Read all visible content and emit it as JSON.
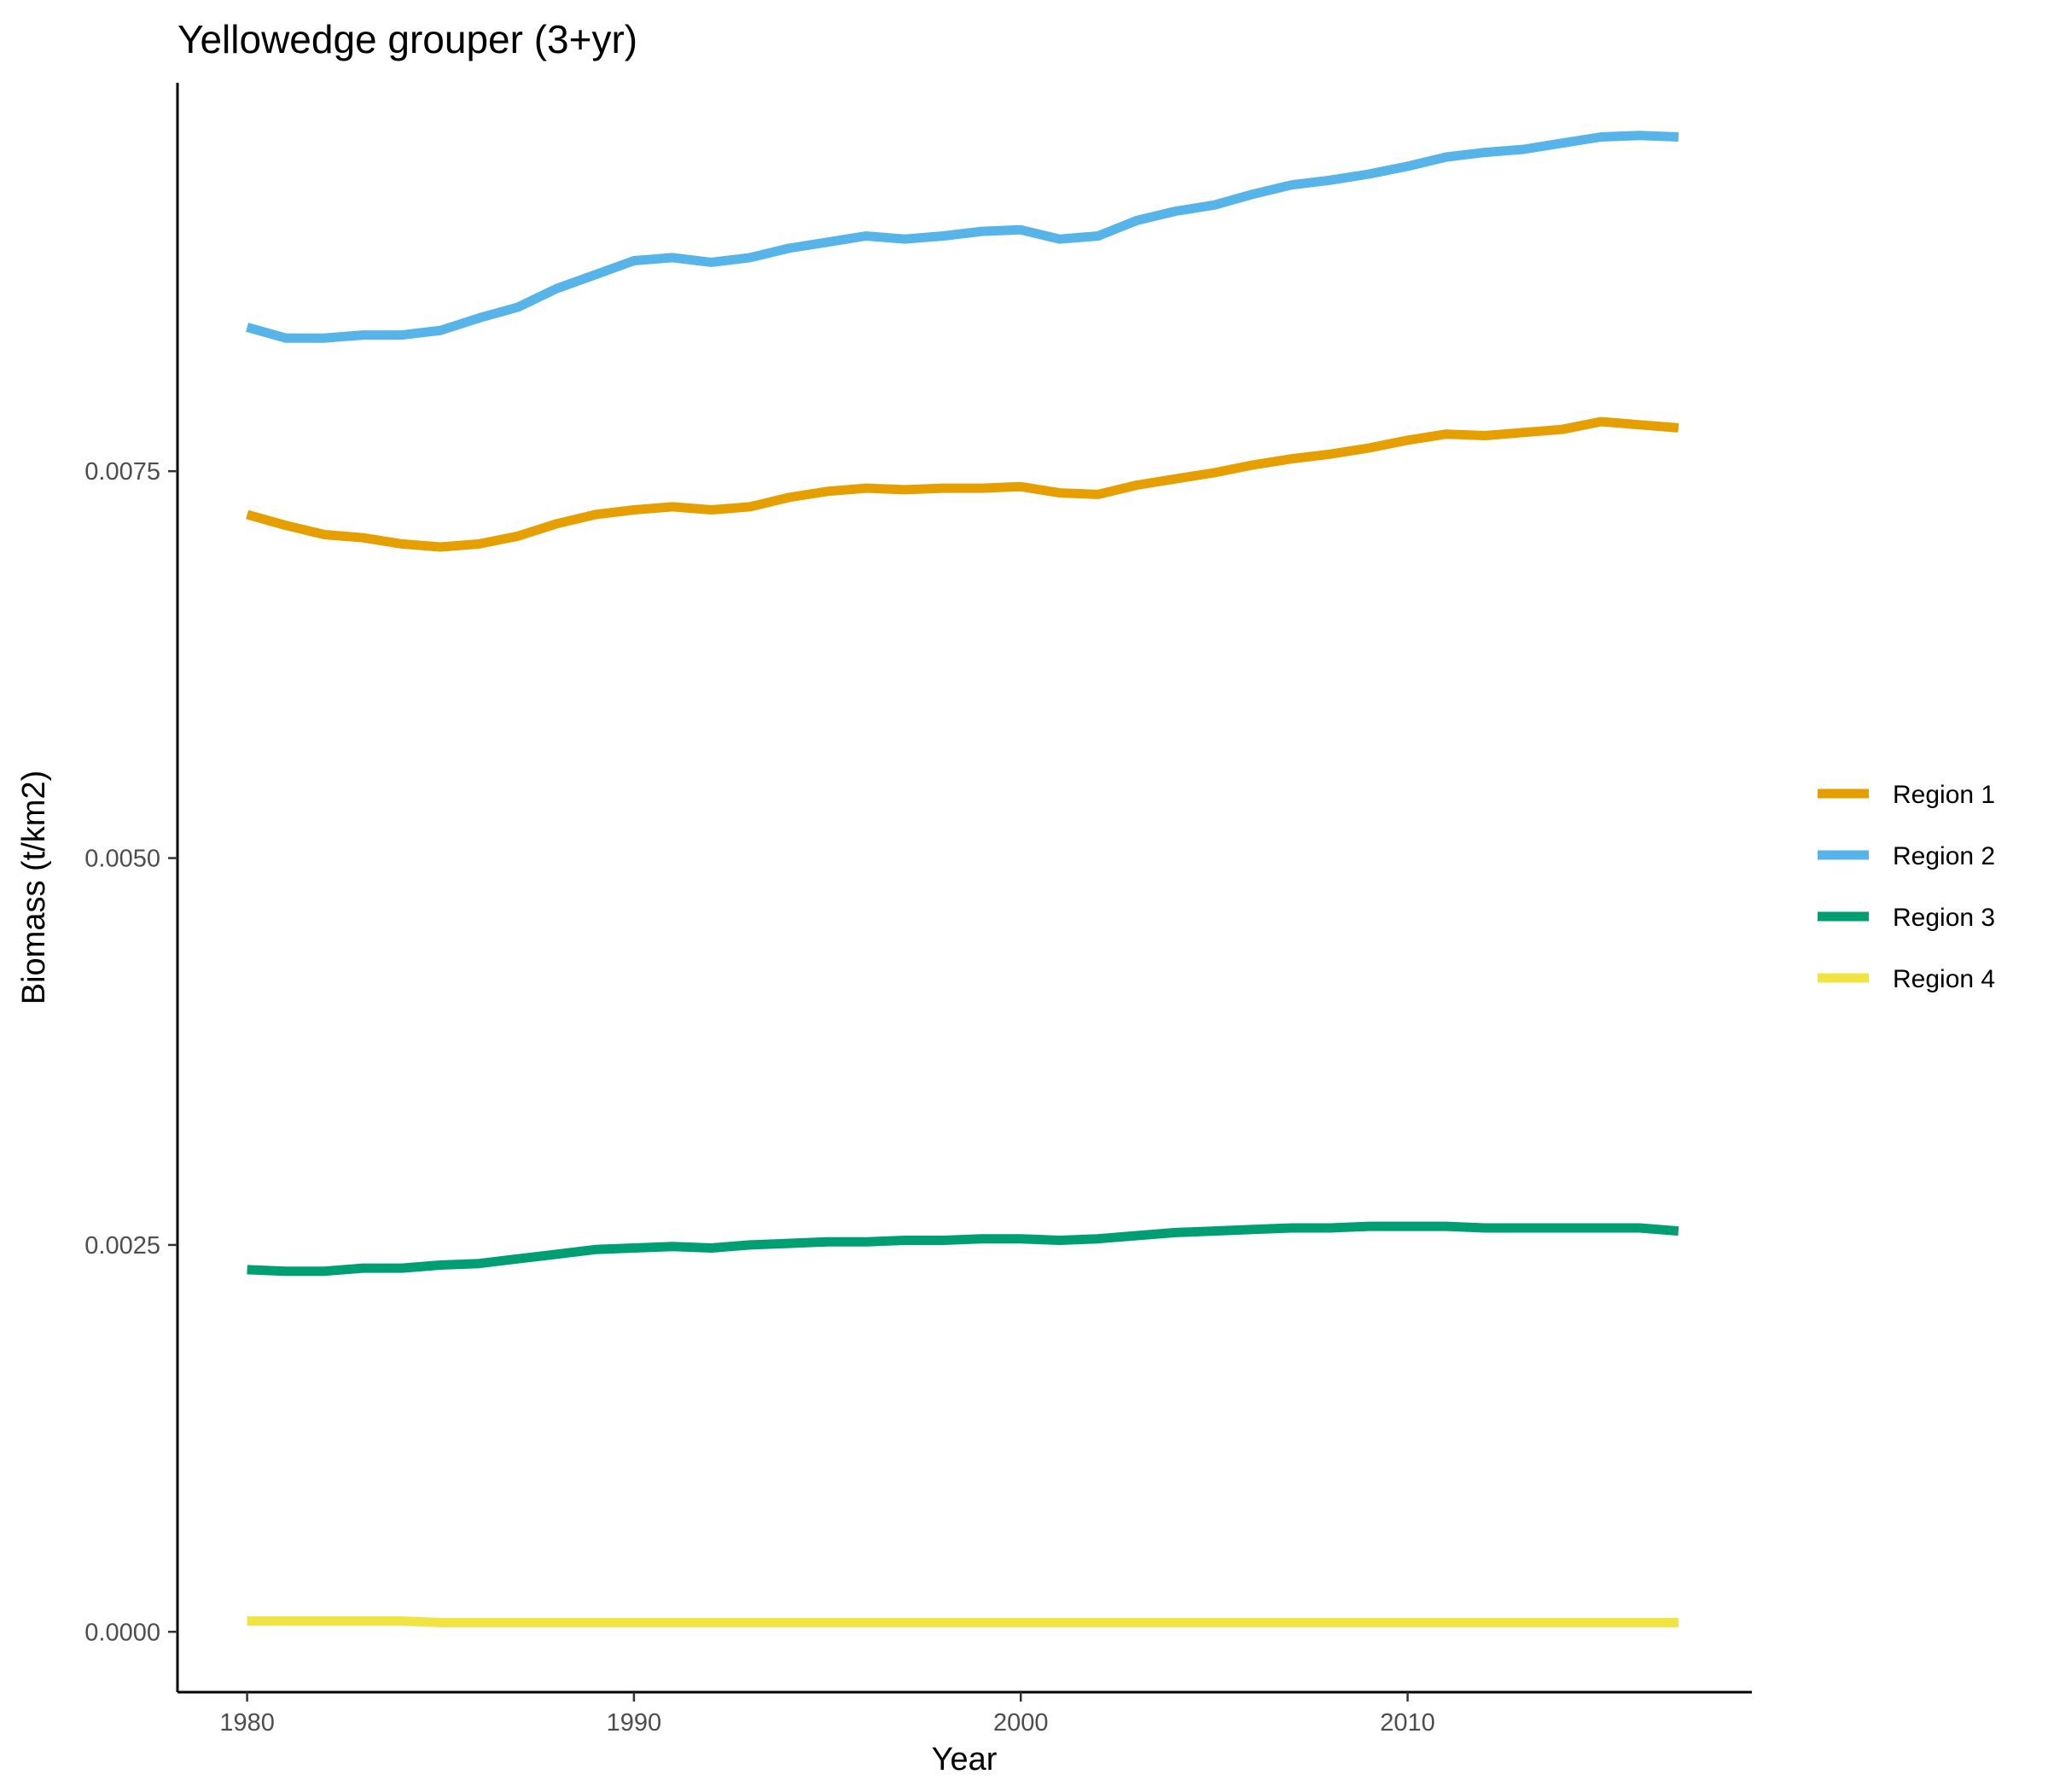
{
  "chart_data": {
    "type": "line",
    "title": "Yellowedge grouper (3+yr)",
    "xlabel": "Year",
    "ylabel": "Biomass (t/km2)",
    "xlim": [
      1978.2,
      2018.9
    ],
    "ylim": [
      -0.00039,
      0.01001
    ],
    "x_ticks": [
      1980,
      1990,
      2000,
      2010
    ],
    "y_ticks": [
      0,
      0.0025,
      0.005,
      0.0075
    ],
    "y_tick_labels": [
      "0.0000",
      "0.0025",
      "0.0050",
      "0.0075"
    ],
    "legend_position": "right",
    "grid": false,
    "x": [
      1980,
      1981,
      1982,
      1983,
      1984,
      1985,
      1986,
      1987,
      1988,
      1989,
      1990,
      1991,
      1992,
      1993,
      1994,
      1995,
      1996,
      1997,
      1998,
      1999,
      2000,
      2001,
      2002,
      2003,
      2004,
      2005,
      2006,
      2007,
      2008,
      2009,
      2010,
      2011,
      2012,
      2013,
      2014,
      2015,
      2016,
      2017
    ],
    "series": [
      {
        "name": "Region 1",
        "color": "#E69F00",
        "values": [
          0.00722,
          0.00715,
          0.00709,
          0.00707,
          0.00703,
          0.00701,
          0.00703,
          0.00708,
          0.00716,
          0.00722,
          0.00725,
          0.00727,
          0.00725,
          0.00727,
          0.00733,
          0.00737,
          0.00739,
          0.00738,
          0.00739,
          0.00739,
          0.0074,
          0.00736,
          0.00735,
          0.00741,
          0.00745,
          0.00749,
          0.00754,
          0.00758,
          0.00761,
          0.00765,
          0.0077,
          0.00774,
          0.00773,
          0.00775,
          0.00777,
          0.00782,
          0.0078,
          0.00778
        ]
      },
      {
        "name": "Region 2",
        "color": "#56B4E9",
        "values": [
          0.00843,
          0.00836,
          0.00836,
          0.00838,
          0.00838,
          0.00841,
          0.00849,
          0.00856,
          0.00868,
          0.00877,
          0.00886,
          0.00888,
          0.00885,
          0.00888,
          0.00894,
          0.00898,
          0.00902,
          0.009,
          0.00902,
          0.00905,
          0.00906,
          0.009,
          0.00902,
          0.00912,
          0.00918,
          0.00922,
          0.00929,
          0.00935,
          0.00938,
          0.00942,
          0.00947,
          0.00953,
          0.00956,
          0.00958,
          0.00962,
          0.00966,
          0.00967,
          0.00966
        ]
      },
      {
        "name": "Region 3",
        "color": "#009E73",
        "values": [
          0.00234,
          0.00233,
          0.00233,
          0.00235,
          0.00235,
          0.00237,
          0.00238,
          0.00241,
          0.00244,
          0.00247,
          0.00248,
          0.00249,
          0.00248,
          0.0025,
          0.00251,
          0.00252,
          0.00252,
          0.00253,
          0.00253,
          0.00254,
          0.00254,
          0.00253,
          0.00254,
          0.00256,
          0.00258,
          0.00259,
          0.0026,
          0.00261,
          0.00261,
          0.00262,
          0.00262,
          0.00262,
          0.00261,
          0.00261,
          0.00261,
          0.00261,
          0.00261,
          0.00259
        ]
      },
      {
        "name": "Region 4",
        "color": "#F0E442",
        "values": [
          7e-05,
          7e-05,
          7e-05,
          7e-05,
          7e-05,
          6e-05,
          6e-05,
          6e-05,
          6e-05,
          6e-05,
          6e-05,
          6e-05,
          6e-05,
          6e-05,
          6e-05,
          6e-05,
          6e-05,
          6e-05,
          6e-05,
          6e-05,
          6e-05,
          6e-05,
          6e-05,
          6e-05,
          6e-05,
          6e-05,
          6e-05,
          6e-05,
          6e-05,
          6e-05,
          6e-05,
          6e-05,
          6e-05,
          6e-05,
          6e-05,
          6e-05,
          6e-05,
          6e-05
        ]
      }
    ]
  }
}
